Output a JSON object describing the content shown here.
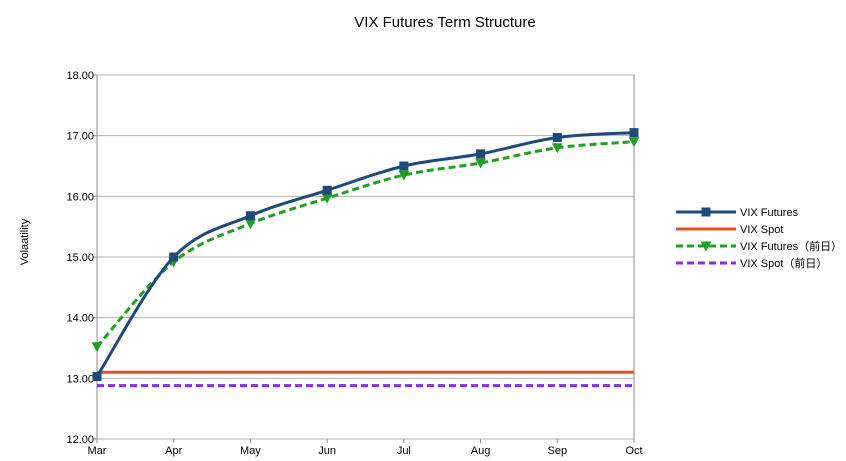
{
  "chart_data": {
    "type": "line",
    "title": "VIX Futures Term Structure",
    "ylabel": "Volaatility",
    "xlabel": "",
    "categories": [
      "Mar",
      "Apr",
      "May",
      "Jun",
      "Jul",
      "Aug",
      "Sep",
      "Oct"
    ],
    "ylim": [
      12,
      18
    ],
    "yticks": [
      "12.00",
      "13.00",
      "14.00",
      "15.00",
      "16.00",
      "17.00",
      "18.00"
    ],
    "grid": true,
    "legend_position": "right",
    "series": [
      {
        "name": "VIX Futures",
        "values": [
          13.03,
          15.0,
          15.68,
          16.1,
          16.5,
          16.7,
          16.97,
          17.05
        ],
        "color": "#1f497d",
        "dash": "solid",
        "marker": "square",
        "smooth": true
      },
      {
        "name": "VIX Spot",
        "values": [
          13.1,
          13.1,
          13.1,
          13.1,
          13.1,
          13.1,
          13.1,
          13.1
        ],
        "color": "#e8501d",
        "dash": "solid",
        "marker": "none",
        "smooth": false
      },
      {
        "name": "VIX Futures（前日）",
        "values": [
          13.52,
          14.92,
          15.55,
          15.97,
          16.35,
          16.55,
          16.8,
          16.9
        ],
        "color": "#20a020",
        "dash": "dashed",
        "marker": "triangle-down",
        "smooth": true
      },
      {
        "name": "VIX Spot（前日）",
        "values": [
          12.88,
          12.88,
          12.88,
          12.88,
          12.88,
          12.88,
          12.88,
          12.88
        ],
        "color": "#8b2be2",
        "dash": "dashed",
        "marker": "none",
        "smooth": false
      }
    ]
  }
}
